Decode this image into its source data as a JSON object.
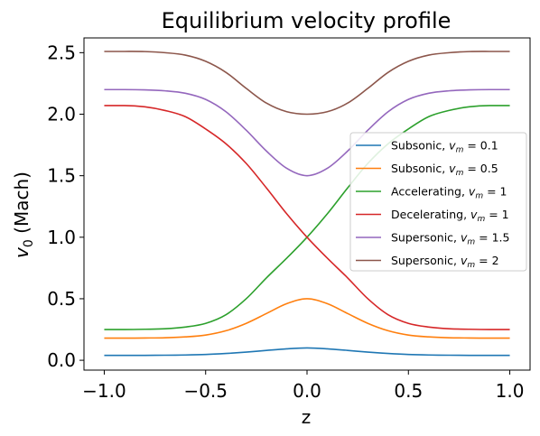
{
  "chart_data": {
    "type": "line",
    "title": "Equilibrium velocity profile",
    "xlabel": "z",
    "ylabel": {
      "symbol": "v",
      "sub": "0",
      "rest": " (Mach)"
    },
    "xlim": [
      -1.1,
      1.1
    ],
    "ylim": [
      -0.08,
      2.62
    ],
    "xticks": [
      -1.0,
      -0.5,
      0.0,
      0.5,
      1.0
    ],
    "xtick_labels": [
      "−1.0",
      "−0.5",
      "0.0",
      "0.5",
      "1.0"
    ],
    "yticks": [
      0.0,
      0.5,
      1.0,
      1.5,
      2.0,
      2.5
    ],
    "ytick_labels": [
      "0.0",
      "0.5",
      "1.0",
      "1.5",
      "2.0",
      "2.5"
    ],
    "grid": false,
    "legend_position": "center-right",
    "x": [
      -1.0,
      -0.9,
      -0.8,
      -0.7,
      -0.6,
      -0.5,
      -0.4,
      -0.3,
      -0.2,
      -0.1,
      0.0,
      0.1,
      0.2,
      0.3,
      0.4,
      0.5,
      0.6,
      0.7,
      0.8,
      0.9,
      1.0
    ],
    "series": [
      {
        "name": "Subsonic, ",
        "vm_label": "v",
        "vm_sub": "m",
        "vm_value": " = 0.1",
        "color": "#1f77b4",
        "values": [
          0.04,
          0.04,
          0.04,
          0.041,
          0.043,
          0.047,
          0.055,
          0.066,
          0.08,
          0.093,
          0.1,
          0.093,
          0.08,
          0.066,
          0.055,
          0.047,
          0.043,
          0.041,
          0.04,
          0.04,
          0.04
        ]
      },
      {
        "name": "Subsonic, ",
        "vm_label": "v",
        "vm_sub": "m",
        "vm_value": " = 0.5",
        "color": "#ff7f0e",
        "values": [
          0.18,
          0.18,
          0.181,
          0.183,
          0.19,
          0.205,
          0.24,
          0.3,
          0.38,
          0.46,
          0.5,
          0.46,
          0.38,
          0.3,
          0.24,
          0.205,
          0.19,
          0.183,
          0.181,
          0.18,
          0.18
        ]
      },
      {
        "name": "Accelerating, ",
        "vm_label": "v",
        "vm_sub": "m",
        "vm_value": " = 1",
        "color": "#2ca02c",
        "values": [
          0.25,
          0.25,
          0.252,
          0.256,
          0.27,
          0.3,
          0.37,
          0.5,
          0.67,
          0.83,
          1.0,
          1.19,
          1.4,
          1.6,
          1.76,
          1.88,
          1.98,
          2.03,
          2.06,
          2.07,
          2.07
        ]
      },
      {
        "name": "Decelerating, ",
        "vm_label": "v",
        "vm_sub": "m",
        "vm_value": " = 1",
        "color": "#d62728",
        "values": [
          2.07,
          2.07,
          2.06,
          2.03,
          1.98,
          1.88,
          1.76,
          1.6,
          1.4,
          1.19,
          1.0,
          0.83,
          0.67,
          0.5,
          0.37,
          0.3,
          0.27,
          0.256,
          0.252,
          0.25,
          0.25
        ]
      },
      {
        "name": "Supersonic, ",
        "vm_label": "v",
        "vm_sub": "m",
        "vm_value": " = 1.5",
        "color": "#9467bd",
        "values": [
          2.2,
          2.2,
          2.198,
          2.19,
          2.17,
          2.12,
          2.02,
          1.87,
          1.7,
          1.56,
          1.5,
          1.56,
          1.7,
          1.87,
          2.02,
          2.12,
          2.17,
          2.19,
          2.198,
          2.2,
          2.2
        ]
      },
      {
        "name": "Supersonic, ",
        "vm_label": "v",
        "vm_sub": "m",
        "vm_value": " = 2",
        "color": "#8c564b",
        "values": [
          2.51,
          2.51,
          2.509,
          2.5,
          2.48,
          2.43,
          2.34,
          2.21,
          2.09,
          2.02,
          2.0,
          2.02,
          2.09,
          2.21,
          2.34,
          2.43,
          2.48,
          2.5,
          2.509,
          2.51,
          2.51
        ]
      }
    ]
  }
}
